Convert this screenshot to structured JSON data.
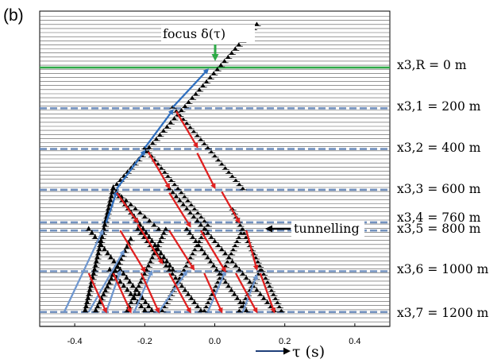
{
  "panel_label": "(b)",
  "colors": {
    "trace": "#000000",
    "grid_line": "#555555",
    "receiver_level": "#2eaa47",
    "interface": "#5b7fb5",
    "upgoing_arrow": "#2f6fbf",
    "upgoing_arrow_light": "#6f97cf",
    "downgoing_arrow": "#e02020",
    "annotation_arrow": "#000000",
    "focus_arrow": "#2eaa47"
  },
  "annotations": {
    "focus_label": "focus δ(τ)",
    "tunnelling_label": "tunnelling"
  },
  "chart_data": {
    "type": "wiggle",
    "xlabel": "τ (s)",
    "xlim": [
      -0.5,
      0.5
    ],
    "xticks": [
      "-0.4",
      "-0.2",
      "0.0",
      "0.2",
      "0.4"
    ],
    "xtick_values": [
      -0.4,
      -0.2,
      0.0,
      0.2,
      0.4
    ],
    "depth_range_m": [
      -150,
      1300
    ],
    "receiver_level": {
      "label": "x3,R = 0 m",
      "depth_m": 0
    },
    "interfaces": [
      {
        "label": "x3,1 = 200 m",
        "depth_m": 200
      },
      {
        "label": "x3,2 = 400 m",
        "depth_m": 400
      },
      {
        "label": "x3,3 = 600 m",
        "depth_m": 600
      },
      {
        "label": "x3,4 = 760 m",
        "depth_m": 760
      },
      {
        "label": "x3,5 = 800 m",
        "depth_m": 800
      },
      {
        "label": "x3,6 = 1000 m",
        "depth_m": 1000
      },
      {
        "label": "x3,7 = 1200 m",
        "depth_m": 1200
      }
    ]
  }
}
